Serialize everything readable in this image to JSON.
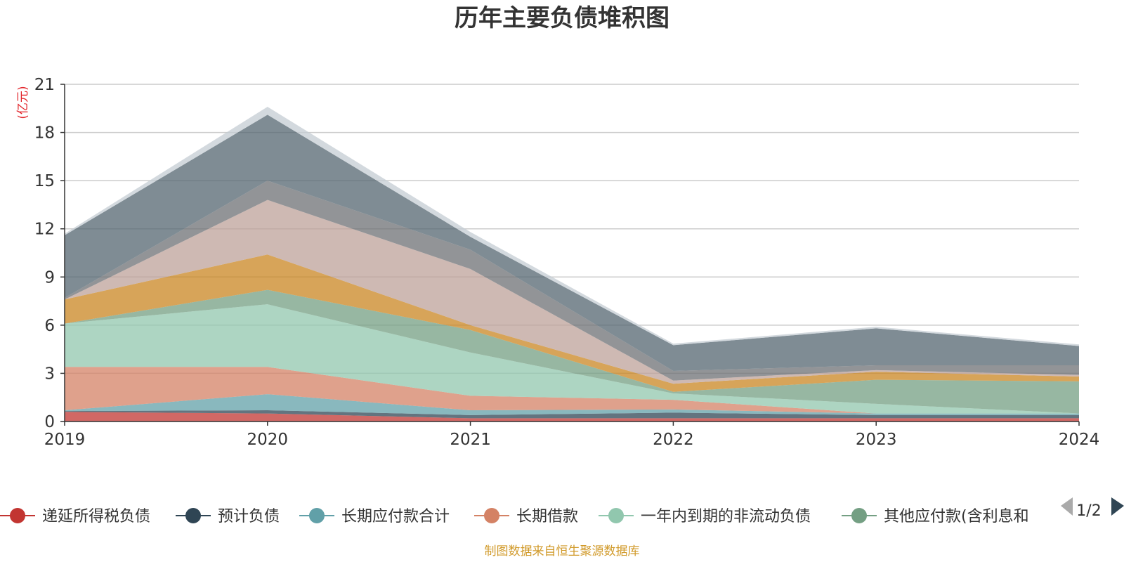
{
  "chart_data": {
    "type": "area",
    "stacked": true,
    "title": "历年主要负债堆积图",
    "ylabel": "(亿元)",
    "x": [
      "2019",
      "2020",
      "2021",
      "2022",
      "2023",
      "2024"
    ],
    "ylim": [
      0,
      21
    ],
    "yticks": [
      "0",
      "3",
      "6",
      "9",
      "12",
      "15",
      "18",
      "21"
    ],
    "grid": true,
    "legend_position": "bottom",
    "series": [
      {
        "name": "递延所得税负债",
        "color": "#c23531",
        "values": [
          0.6,
          0.5,
          0.2,
          0.2,
          0.2,
          0.2
        ]
      },
      {
        "name": "预计负债",
        "color": "#2f4554",
        "values": [
          0.05,
          0.2,
          0.2,
          0.35,
          0.2,
          0.2
        ]
      },
      {
        "name": "长期应付款合计",
        "color": "#61a0a8",
        "values": [
          0.05,
          1.0,
          0.3,
          0.2,
          0.1,
          0.1
        ]
      },
      {
        "name": "长期借款",
        "color": "#d48265",
        "values": [
          2.7,
          1.7,
          0.9,
          0.6,
          0.0,
          0.0
        ]
      },
      {
        "name": "一年内到期的非流动负债",
        "color": "#91c7ae",
        "values": [
          2.7,
          3.9,
          2.7,
          0.4,
          0.6,
          0.0
        ]
      },
      {
        "name": "其他应付款(含利息和",
        "color": "#749f83",
        "values": [
          0.0,
          0.9,
          1.4,
          0.1,
          1.5,
          2.0
        ]
      },
      {
        "name": "",
        "color": "#ca8622",
        "values": [
          1.5,
          2.2,
          0.3,
          0.5,
          0.5,
          0.3
        ]
      },
      {
        "name": "",
        "color": "#bda29a",
        "values": [
          0.0,
          3.4,
          3.5,
          0.2,
          0.1,
          0.1
        ]
      },
      {
        "name": "",
        "color": "#6e7074",
        "values": [
          0.1,
          1.2,
          1.2,
          0.6,
          0.3,
          0.6
        ]
      },
      {
        "name": "",
        "color": "#546570",
        "values": [
          3.9,
          4.1,
          0.8,
          1.6,
          2.3,
          1.2
        ]
      },
      {
        "name": "",
        "color": "#c4ccd3",
        "values": [
          0.1,
          0.5,
          0.3,
          0.1,
          0.1,
          0.1
        ]
      }
    ],
    "legend": {
      "visible_count": 6,
      "page_label": "1/2"
    }
  },
  "source_note": "制图数据来自恒生聚源数据库"
}
